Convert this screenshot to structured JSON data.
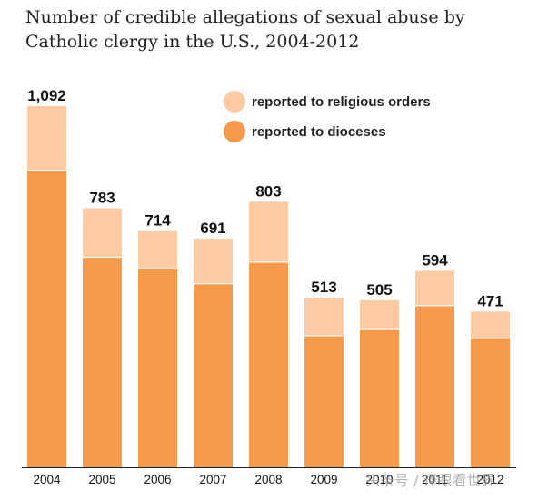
{
  "chart_data": {
    "type": "bar",
    "stacked": true,
    "title_lines": [
      "Number of credible allegations of sexual abuse by",
      "Catholic clergy in the U.S., 2004-2012"
    ],
    "categories": [
      "2004",
      "2005",
      "2006",
      "2007",
      "2008",
      "2009",
      "2010",
      "2011",
      "2012"
    ],
    "series": [
      {
        "name": "reported to dioceses",
        "color": "#f5994a",
        "values": [
          898,
          635,
          600,
          555,
          620,
          398,
          417,
          489,
          390
        ]
      },
      {
        "name": "reported to religious orders",
        "color": "#fccaa3",
        "values": [
          194,
          148,
          114,
          136,
          183,
          115,
          88,
          105,
          81
        ]
      }
    ],
    "totals": [
      1092,
      783,
      714,
      691,
      803,
      513,
      505,
      594,
      471
    ],
    "total_labels": [
      "1,092",
      "783",
      "714",
      "691",
      "803",
      "513",
      "505",
      "594",
      "471"
    ],
    "legend_order": [
      "reported to religious orders",
      "reported to dioceses"
    ],
    "legend_position": "top-right",
    "ylim": [
      0,
      1100
    ],
    "grid": false,
    "xlabel": "",
    "ylabel": ""
  },
  "watermark": "头条号 / 译眼看世界"
}
